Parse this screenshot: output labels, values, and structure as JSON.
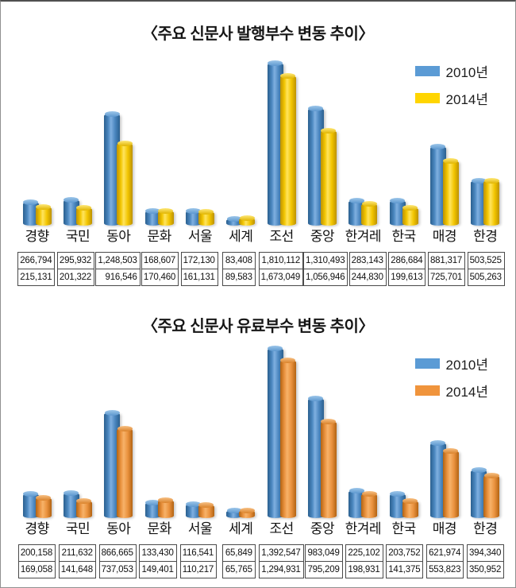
{
  "page": {
    "background": "#ffffff",
    "border_color": "#909090",
    "border_top_color": "#4f4f4f"
  },
  "chart_data": [
    {
      "type": "bar",
      "bar_style": "cylinder-3d",
      "title": "〈주요 신문사 발행부수 변동 추이〉",
      "xlabel": "",
      "ylabel": "",
      "ylim": [
        0,
        1900000
      ],
      "grid": false,
      "legend_position": "top-right",
      "data_table": true,
      "categories": [
        "경향",
        "국민",
        "동아",
        "문화",
        "서울",
        "세계",
        "조선",
        "중앙",
        "한겨레",
        "한국",
        "매경",
        "한경"
      ],
      "series": [
        {
          "name": "2010년",
          "values": [
            266794,
            295932,
            1248503,
            168607,
            172130,
            83408,
            1810112,
            1310493,
            283143,
            286684,
            881317,
            503525
          ],
          "colors": {
            "legend": "#5b9bd5",
            "edge": "#2b608f",
            "mid": "#4a86bf",
            "highlight": "#7fb0e0",
            "cap_light": "#9cc6ea",
            "cap_dark": "#5e98cf"
          }
        },
        {
          "name": "2014년",
          "values": [
            215131,
            201322,
            916546,
            170460,
            161131,
            89583,
            1673049,
            1056946,
            244830,
            199613,
            725701,
            505263
          ],
          "colors": {
            "legend": "#ffd500",
            "edge": "#bd9200",
            "mid": "#f2c500",
            "highlight": "#ffe45e",
            "cap_light": "#ffe879",
            "cap_dark": "#e0b400"
          }
        }
      ]
    },
    {
      "type": "bar",
      "bar_style": "cylinder-3d",
      "title": "〈주요 신문사 유료부수 변동 추이〉",
      "xlabel": "",
      "ylabel": "",
      "ylim": [
        0,
        1400000
      ],
      "grid": false,
      "legend_position": "top-right",
      "data_table": true,
      "categories": [
        "경향",
        "국민",
        "동아",
        "문화",
        "서울",
        "세계",
        "조선",
        "중앙",
        "한겨레",
        "한국",
        "매경",
        "한경"
      ],
      "series": [
        {
          "name": "2010년",
          "values": [
            200158,
            211632,
            866665,
            133430,
            116541,
            65849,
            1392547,
            983049,
            225102,
            203752,
            621974,
            394340
          ],
          "colors": {
            "legend": "#5b9bd5",
            "edge": "#2b608f",
            "mid": "#4a86bf",
            "highlight": "#7fb0e0",
            "cap_light": "#9cc6ea",
            "cap_dark": "#5e98cf"
          }
        },
        {
          "name": "2014년",
          "values": [
            169058,
            141648,
            737053,
            149401,
            110217,
            65765,
            1294931,
            795209,
            198931,
            141375,
            553823,
            350952
          ],
          "colors": {
            "legend": "#f0943c",
            "edge": "#b26312",
            "mid": "#ea923e",
            "highlight": "#f7b269",
            "cap_light": "#f8c184",
            "cap_dark": "#d9822a"
          }
        }
      ]
    }
  ]
}
